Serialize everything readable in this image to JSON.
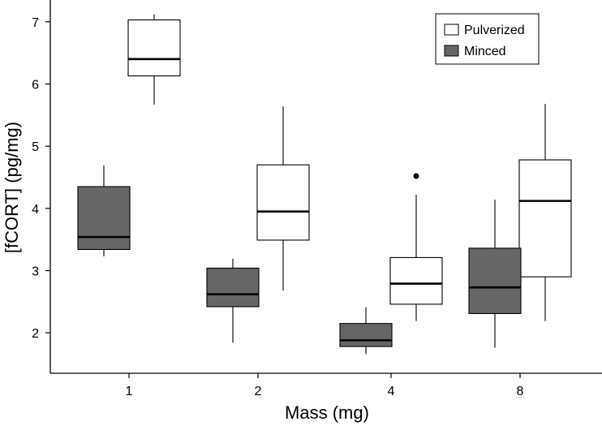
{
  "chart_data": {
    "type": "boxplot",
    "title": "",
    "xlabel": "Mass (mg)",
    "ylabel": "[fCORT] (pg/mg)",
    "categories": [
      "1",
      "2",
      "4",
      "8"
    ],
    "ylim": [
      1.35,
      7.35
    ],
    "yticks": [
      2,
      3,
      4,
      5,
      6,
      7
    ],
    "grid": false,
    "legend_position": "top-right",
    "series": [
      {
        "name": "Pulverized",
        "color": "#ffffff",
        "boxes": [
          {
            "category": "1",
            "whisker_low": 5.67,
            "q1": 6.13,
            "median": 6.4,
            "q3": 7.03,
            "whisker_high": 7.12,
            "outliers": []
          },
          {
            "category": "2",
            "whisker_low": 2.68,
            "q1": 3.49,
            "median": 3.95,
            "q3": 4.7,
            "whisker_high": 5.64,
            "outliers": []
          },
          {
            "category": "4",
            "whisker_low": 2.19,
            "q1": 2.46,
            "median": 2.79,
            "q3": 3.21,
            "whisker_high": 4.22,
            "outliers": [
              4.52
            ]
          },
          {
            "category": "8",
            "whisker_low": 2.19,
            "q1": 2.9,
            "median": 4.12,
            "q3": 4.78,
            "whisker_high": 5.68,
            "outliers": []
          }
        ]
      },
      {
        "name": "Minced",
        "color": "#666666",
        "boxes": [
          {
            "category": "1",
            "whisker_low": 3.23,
            "q1": 3.34,
            "median": 3.54,
            "q3": 4.35,
            "whisker_high": 4.69,
            "outliers": []
          },
          {
            "category": "2",
            "whisker_low": 1.84,
            "q1": 2.42,
            "median": 2.62,
            "q3": 3.04,
            "whisker_high": 3.19,
            "outliers": []
          },
          {
            "category": "4",
            "whisker_low": 1.66,
            "q1": 1.78,
            "median": 1.88,
            "q3": 2.15,
            "whisker_high": 2.41,
            "outliers": []
          },
          {
            "category": "8",
            "whisker_low": 1.76,
            "q1": 2.31,
            "median": 2.73,
            "q3": 3.36,
            "whisker_high": 4.14,
            "outliers": []
          }
        ]
      }
    ]
  }
}
